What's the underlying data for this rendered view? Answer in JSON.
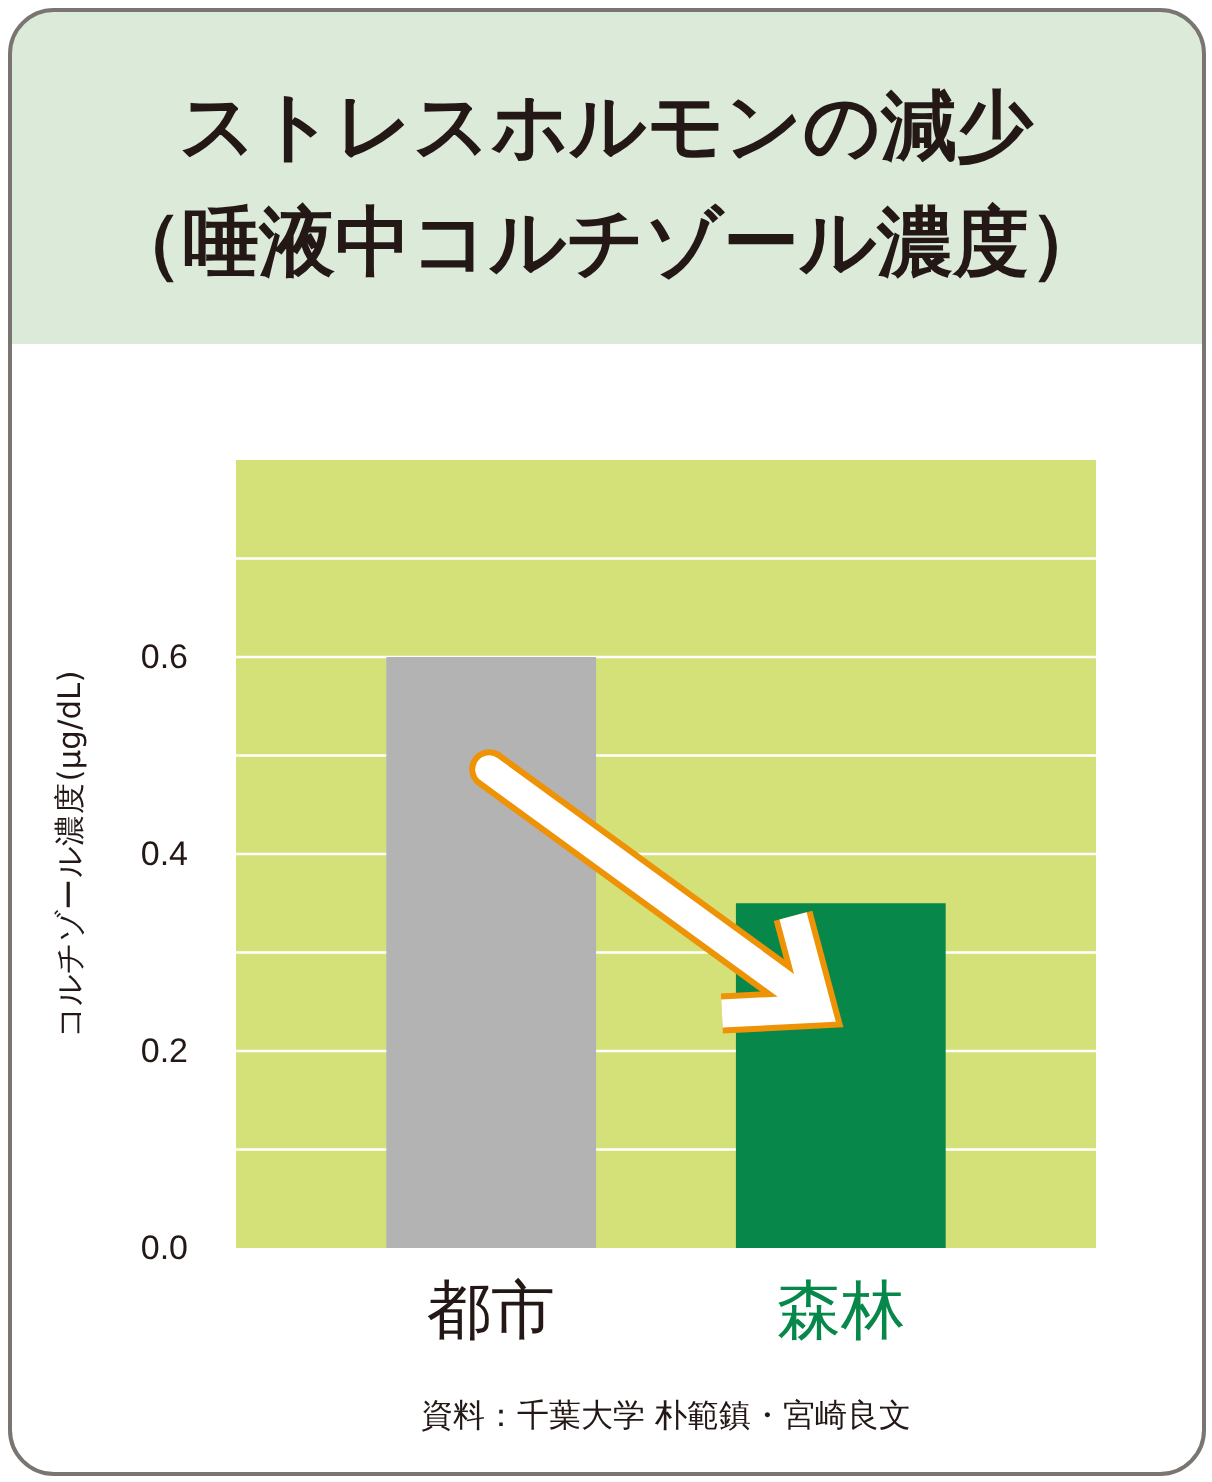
{
  "chart_data": {
    "type": "bar",
    "title": "ストレスホルモンの減少（唾液中コルチゾール濃度）",
    "ylabel": "コルチゾール濃度(μg/dL)",
    "categories": [
      "都市",
      "森林"
    ],
    "values": [
      0.6,
      0.35
    ],
    "colors": [
      "#b3b3b3",
      "#07874a"
    ],
    "ylim": [
      0,
      0.8
    ],
    "yticks": [
      {
        "value": 0,
        "label": "0.0"
      },
      {
        "value": 0.1,
        "label": null
      },
      0.2,
      {
        "value": 0.3,
        "label": null
      },
      0.4,
      {
        "value": 0.5,
        "label": null
      },
      0.6,
      {
        "value": 0.7,
        "label": null
      }
    ],
    "grid": "y",
    "annotations": [
      "資料：千葉大学 朴範鎮・宮崎良文"
    ]
  }
}
